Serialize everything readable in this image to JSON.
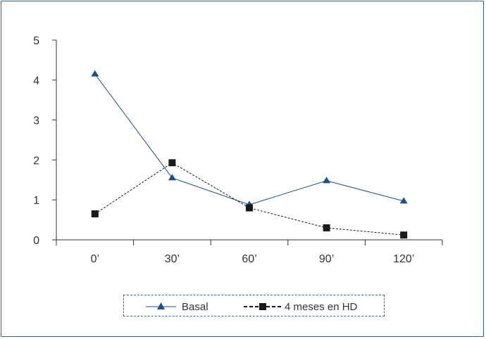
{
  "chart_data": {
    "type": "line",
    "categories": [
      "0’",
      "30’",
      "60’",
      "90’",
      "120’"
    ],
    "series": [
      {
        "name": "Basal",
        "values": [
          4.15,
          1.55,
          0.88,
          1.48,
          0.97
        ],
        "color": "#1f4e8c",
        "marker": "triangle",
        "line": "solid"
      },
      {
        "name": "4 meses en HD",
        "values": [
          0.65,
          1.93,
          0.8,
          0.3,
          0.12
        ],
        "color": "#1a1a1a",
        "marker": "square",
        "line": "dashed"
      }
    ],
    "ylim": [
      0,
      5
    ],
    "yticks": [
      0,
      1,
      2,
      3,
      4,
      5
    ],
    "grid": false,
    "legend_position": "bottom"
  }
}
